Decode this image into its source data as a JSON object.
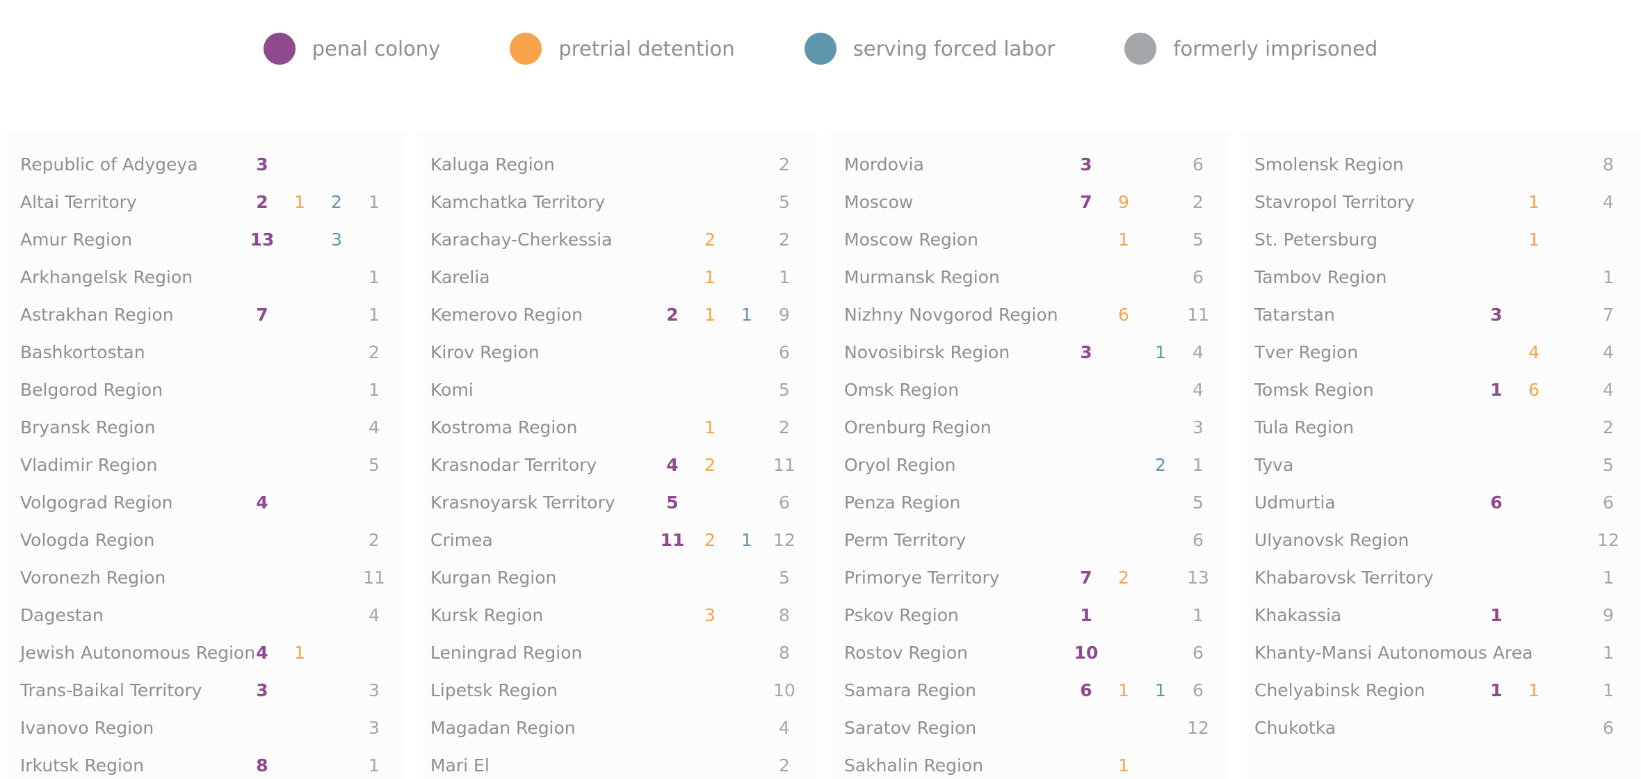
{
  "chart_data": {
    "type": "table",
    "title": "",
    "legend": [
      {
        "key": "penal",
        "label": "penal colony",
        "color": "#8e4a8f"
      },
      {
        "key": "pretrial",
        "label": "pretrial detention",
        "color": "#f6a34a"
      },
      {
        "key": "forced",
        "label": "serving forced labor",
        "color": "#5e97ad"
      },
      {
        "key": "former",
        "label": "formerly imprisoned",
        "color": "#a4a7aa"
      }
    ],
    "columns": [
      [
        {
          "region": "Republic of Adygeya",
          "penal": "3",
          "pretrial": "",
          "forced": "",
          "former": ""
        },
        {
          "region": "Altai Territory",
          "penal": "2",
          "pretrial": "1",
          "forced": "2",
          "former": "1"
        },
        {
          "region": "Amur Region",
          "penal": "13",
          "pretrial": "",
          "forced": "3",
          "former": ""
        },
        {
          "region": "Arkhangelsk Region",
          "penal": "",
          "pretrial": "",
          "forced": "",
          "former": "1"
        },
        {
          "region": "Astrakhan Region",
          "penal": "7",
          "pretrial": "",
          "forced": "",
          "former": "1"
        },
        {
          "region": "Bashkortostan",
          "penal": "",
          "pretrial": "",
          "forced": "",
          "former": "2"
        },
        {
          "region": "Belgorod Region",
          "penal": "",
          "pretrial": "",
          "forced": "",
          "former": "1"
        },
        {
          "region": "Bryansk Region",
          "penal": "",
          "pretrial": "",
          "forced": "",
          "former": "4"
        },
        {
          "region": "Vladimir Region",
          "penal": "",
          "pretrial": "",
          "forced": "",
          "former": "5"
        },
        {
          "region": "Volgograd Region",
          "penal": "4",
          "pretrial": "",
          "forced": "",
          "former": ""
        },
        {
          "region": "Vologda Region",
          "penal": "",
          "pretrial": "",
          "forced": "",
          "former": "2"
        },
        {
          "region": "Voronezh Region",
          "penal": "",
          "pretrial": "",
          "forced": "",
          "former": "11"
        },
        {
          "region": "Dagestan",
          "penal": "",
          "pretrial": "",
          "forced": "",
          "former": "4"
        },
        {
          "region": "Jewish Autonomous Region",
          "penal": "4",
          "pretrial": "1",
          "forced": "",
          "former": ""
        },
        {
          "region": "Trans-Baikal Territory",
          "penal": "3",
          "pretrial": "",
          "forced": "",
          "former": "3"
        },
        {
          "region": "Ivanovo Region",
          "penal": "",
          "pretrial": "",
          "forced": "",
          "former": "3"
        },
        {
          "region": "Irkutsk Region",
          "penal": "8",
          "pretrial": "",
          "forced": "",
          "former": "1"
        }
      ],
      [
        {
          "region": "Kaluga Region",
          "penal": "",
          "pretrial": "",
          "forced": "",
          "former": "2"
        },
        {
          "region": "Kamchatka Territory",
          "penal": "",
          "pretrial": "",
          "forced": "",
          "former": "5"
        },
        {
          "region": "Karachay-Cherkessia",
          "penal": "",
          "pretrial": "2",
          "forced": "",
          "former": "2"
        },
        {
          "region": "Karelia",
          "penal": "",
          "pretrial": "1",
          "forced": "",
          "former": "1"
        },
        {
          "region": "Kemerovo Region",
          "penal": "2",
          "pretrial": "1",
          "forced": "1",
          "former": "9"
        },
        {
          "region": "Kirov Region",
          "penal": "",
          "pretrial": "",
          "forced": "",
          "former": "6"
        },
        {
          "region": "Komi",
          "penal": "",
          "pretrial": "",
          "forced": "",
          "former": "5"
        },
        {
          "region": "Kostroma Region",
          "penal": "",
          "pretrial": "1",
          "forced": "",
          "former": "2"
        },
        {
          "region": "Krasnodar Territory",
          "penal": "4",
          "pretrial": "2",
          "forced": "",
          "former": "11"
        },
        {
          "region": "Krasnoyarsk Territory",
          "penal": "5",
          "pretrial": "",
          "forced": "",
          "former": "6"
        },
        {
          "region": "Crimea",
          "penal": "11",
          "pretrial": "2",
          "forced": "1",
          "former": "12"
        },
        {
          "region": "Kurgan Region",
          "penal": "",
          "pretrial": "",
          "forced": "",
          "former": "5"
        },
        {
          "region": "Kursk Region",
          "penal": "",
          "pretrial": "3",
          "forced": "",
          "former": "8"
        },
        {
          "region": "Leningrad Region",
          "penal": "",
          "pretrial": "",
          "forced": "",
          "former": "8"
        },
        {
          "region": "Lipetsk Region",
          "penal": "",
          "pretrial": "",
          "forced": "",
          "former": "10"
        },
        {
          "region": "Magadan Region",
          "penal": "",
          "pretrial": "",
          "forced": "",
          "former": "4"
        },
        {
          "region": "Mari El",
          "penal": "",
          "pretrial": "",
          "forced": "",
          "former": "2"
        }
      ],
      [
        {
          "region": "Mordovia",
          "penal": "3",
          "pretrial": "",
          "forced": "",
          "former": "6"
        },
        {
          "region": "Moscow",
          "penal": "7",
          "pretrial": "9",
          "forced": "",
          "former": "2"
        },
        {
          "region": "Moscow Region",
          "penal": "",
          "pretrial": "1",
          "forced": "",
          "former": "5"
        },
        {
          "region": "Murmansk Region",
          "penal": "",
          "pretrial": "",
          "forced": "",
          "former": "6"
        },
        {
          "region": "Nizhny Novgorod Region",
          "penal": "",
          "pretrial": "6",
          "forced": "",
          "former": "11"
        },
        {
          "region": "Novosibirsk Region",
          "penal": "3",
          "pretrial": "",
          "forced": "1",
          "former": "4"
        },
        {
          "region": "Omsk Region",
          "penal": "",
          "pretrial": "",
          "forced": "",
          "former": "4"
        },
        {
          "region": "Orenburg Region",
          "penal": "",
          "pretrial": "",
          "forced": "",
          "former": "3"
        },
        {
          "region": "Oryol Region",
          "penal": "",
          "pretrial": "",
          "forced": "2",
          "former": "1"
        },
        {
          "region": "Penza Region",
          "penal": "",
          "pretrial": "",
          "forced": "",
          "former": "5"
        },
        {
          "region": "Perm Territory",
          "penal": "",
          "pretrial": "",
          "forced": "",
          "former": "6"
        },
        {
          "region": "Primorye Territory",
          "penal": "7",
          "pretrial": "2",
          "forced": "",
          "former": "13"
        },
        {
          "region": "Pskov Region",
          "penal": "1",
          "pretrial": "",
          "forced": "",
          "former": "1"
        },
        {
          "region": "Rostov Region",
          "penal": "10",
          "pretrial": "",
          "forced": "",
          "former": "6"
        },
        {
          "region": "Samara Region",
          "penal": "6",
          "pretrial": "1",
          "forced": "1",
          "former": "6"
        },
        {
          "region": "Saratov Region",
          "penal": "",
          "pretrial": "",
          "forced": "",
          "former": "12"
        },
        {
          "region": "Sakhalin Region",
          "penal": "",
          "pretrial": "1",
          "forced": "",
          "former": ""
        }
      ],
      [
        {
          "region": "Smolensk Region",
          "penal": "",
          "pretrial": "",
          "forced": "",
          "former": "8"
        },
        {
          "region": "Stavropol Territory",
          "penal": "",
          "pretrial": "1",
          "forced": "",
          "former": "4"
        },
        {
          "region": "St. Petersburg",
          "penal": "",
          "pretrial": "1",
          "forced": "",
          "former": ""
        },
        {
          "region": "Tambov Region",
          "penal": "",
          "pretrial": "",
          "forced": "",
          "former": "1"
        },
        {
          "region": "Tatarstan",
          "penal": "3",
          "pretrial": "",
          "forced": "",
          "former": "7"
        },
        {
          "region": "Tver Region",
          "penal": "",
          "pretrial": "4",
          "forced": "",
          "former": "4"
        },
        {
          "region": "Tomsk Region",
          "penal": "1",
          "pretrial": "6",
          "forced": "",
          "former": "4"
        },
        {
          "region": "Tula Region",
          "penal": "",
          "pretrial": "",
          "forced": "",
          "former": "2"
        },
        {
          "region": "Tyva",
          "penal": "",
          "pretrial": "",
          "forced": "",
          "former": "5"
        },
        {
          "region": "Udmurtia",
          "penal": "6",
          "pretrial": "",
          "forced": "",
          "former": "6"
        },
        {
          "region": "Ulyanovsk Region",
          "penal": "",
          "pretrial": "",
          "forced": "",
          "former": "12"
        },
        {
          "region": "Khabarovsk Territory",
          "penal": "",
          "pretrial": "",
          "forced": "",
          "former": "1"
        },
        {
          "region": "Khakassia",
          "penal": "1",
          "pretrial": "",
          "forced": "",
          "former": "9"
        },
        {
          "region": "Khanty-Mansi Autonomous Area",
          "penal": "",
          "pretrial": "",
          "forced": "",
          "former": "1"
        },
        {
          "region": "Chelyabinsk Region",
          "penal": "1",
          "pretrial": "1",
          "forced": "",
          "former": "1"
        },
        {
          "region": "Chukotka",
          "penal": "",
          "pretrial": "",
          "forced": "",
          "former": "6"
        }
      ]
    ]
  }
}
